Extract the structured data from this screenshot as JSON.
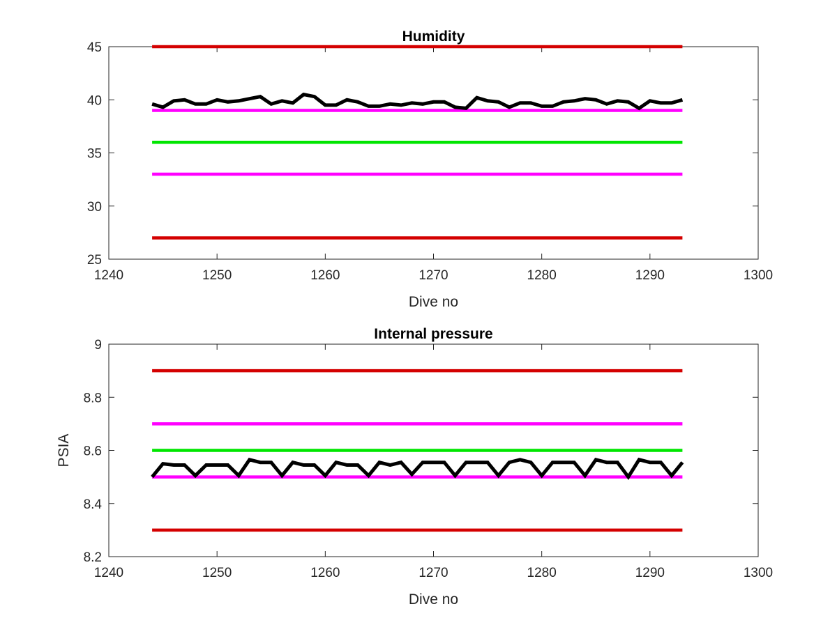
{
  "chart_data": [
    {
      "type": "line",
      "title": "Humidity",
      "xlabel": "Dive no",
      "ylabel": "",
      "xlim": [
        1240,
        1300
      ],
      "ylim": [
        25,
        45
      ],
      "xticks": [
        "1240",
        "1250",
        "1260",
        "1270",
        "1280",
        "1290",
        "1300"
      ],
      "yticks": [
        "25",
        "30",
        "35",
        "40",
        "45"
      ],
      "grid": false,
      "series": [
        {
          "color": "#d40000",
          "x": [
            1244,
            1293
          ],
          "y": [
            45,
            45
          ]
        },
        {
          "color": "#ff00ff",
          "x": [
            1244,
            1293
          ],
          "y": [
            39,
            39
          ]
        },
        {
          "color": "#00e600",
          "x": [
            1244,
            1293
          ],
          "y": [
            36,
            36
          ]
        },
        {
          "color": "#ff00ff",
          "x": [
            1244,
            1293
          ],
          "y": [
            33,
            33
          ]
        },
        {
          "color": "#d40000",
          "x": [
            1244,
            1293
          ],
          "y": [
            27,
            27
          ]
        },
        {
          "color": "#000000",
          "x": [
            1244,
            1245,
            1246,
            1247,
            1248,
            1249,
            1250,
            1251,
            1252,
            1253,
            1254,
            1255,
            1256,
            1257,
            1258,
            1259,
            1260,
            1261,
            1262,
            1263,
            1264,
            1265,
            1266,
            1267,
            1268,
            1269,
            1270,
            1271,
            1272,
            1273,
            1274,
            1275,
            1276,
            1277,
            1278,
            1279,
            1280,
            1281,
            1282,
            1283,
            1284,
            1285,
            1286,
            1287,
            1288,
            1289,
            1290,
            1291,
            1292,
            1293
          ],
          "y": [
            39.6,
            39.3,
            39.9,
            40.0,
            39.6,
            39.6,
            40.0,
            39.8,
            39.9,
            40.1,
            40.3,
            39.6,
            39.9,
            39.7,
            40.5,
            40.3,
            39.5,
            39.5,
            40.0,
            39.8,
            39.4,
            39.4,
            39.6,
            39.5,
            39.7,
            39.6,
            39.8,
            39.8,
            39.3,
            39.2,
            40.2,
            39.9,
            39.8,
            39.3,
            39.7,
            39.7,
            39.4,
            39.4,
            39.8,
            39.9,
            40.1,
            40.0,
            39.6,
            39.9,
            39.8,
            39.2,
            39.9,
            39.7,
            39.7,
            40.0
          ]
        }
      ]
    },
    {
      "type": "line",
      "title": "Internal pressure",
      "xlabel": "Dive no",
      "ylabel": "PSIA",
      "xlim": [
        1240,
        1300
      ],
      "ylim": [
        8.2,
        9.0
      ],
      "xticks": [
        "1240",
        "1250",
        "1260",
        "1270",
        "1280",
        "1290",
        "1300"
      ],
      "yticks": [
        "8.2",
        "8.4",
        "8.6",
        "8.8",
        "9"
      ],
      "grid": false,
      "series": [
        {
          "color": "#d40000",
          "x": [
            1244,
            1293
          ],
          "y": [
            8.9,
            8.9
          ]
        },
        {
          "color": "#ff00ff",
          "x": [
            1244,
            1293
          ],
          "y": [
            8.7,
            8.7
          ]
        },
        {
          "color": "#00e600",
          "x": [
            1244,
            1293
          ],
          "y": [
            8.6,
            8.6
          ]
        },
        {
          "color": "#ff00ff",
          "x": [
            1244,
            1293
          ],
          "y": [
            8.5,
            8.5
          ]
        },
        {
          "color": "#d40000",
          "x": [
            1244,
            1293
          ],
          "y": [
            8.3,
            8.3
          ]
        },
        {
          "color": "#000000",
          "x": [
            1244,
            1245,
            1246,
            1247,
            1248,
            1249,
            1250,
            1251,
            1252,
            1253,
            1254,
            1255,
            1256,
            1257,
            1258,
            1259,
            1260,
            1261,
            1262,
            1263,
            1264,
            1265,
            1266,
            1267,
            1268,
            1269,
            1270,
            1271,
            1272,
            1273,
            1274,
            1275,
            1276,
            1277,
            1278,
            1279,
            1280,
            1281,
            1282,
            1283,
            1284,
            1285,
            1286,
            1287,
            1288,
            1289,
            1290,
            1291,
            1292,
            1293
          ],
          "y": [
            8.5,
            8.55,
            8.545,
            8.545,
            8.505,
            8.545,
            8.545,
            8.545,
            8.505,
            8.565,
            8.555,
            8.555,
            8.505,
            8.555,
            8.545,
            8.545,
            8.505,
            8.555,
            8.545,
            8.545,
            8.505,
            8.555,
            8.545,
            8.555,
            8.51,
            8.555,
            8.555,
            8.555,
            8.505,
            8.555,
            8.555,
            8.555,
            8.505,
            8.555,
            8.565,
            8.555,
            8.505,
            8.555,
            8.555,
            8.555,
            8.505,
            8.565,
            8.555,
            8.555,
            8.5,
            8.565,
            8.555,
            8.555,
            8.505,
            8.555
          ]
        }
      ]
    }
  ]
}
